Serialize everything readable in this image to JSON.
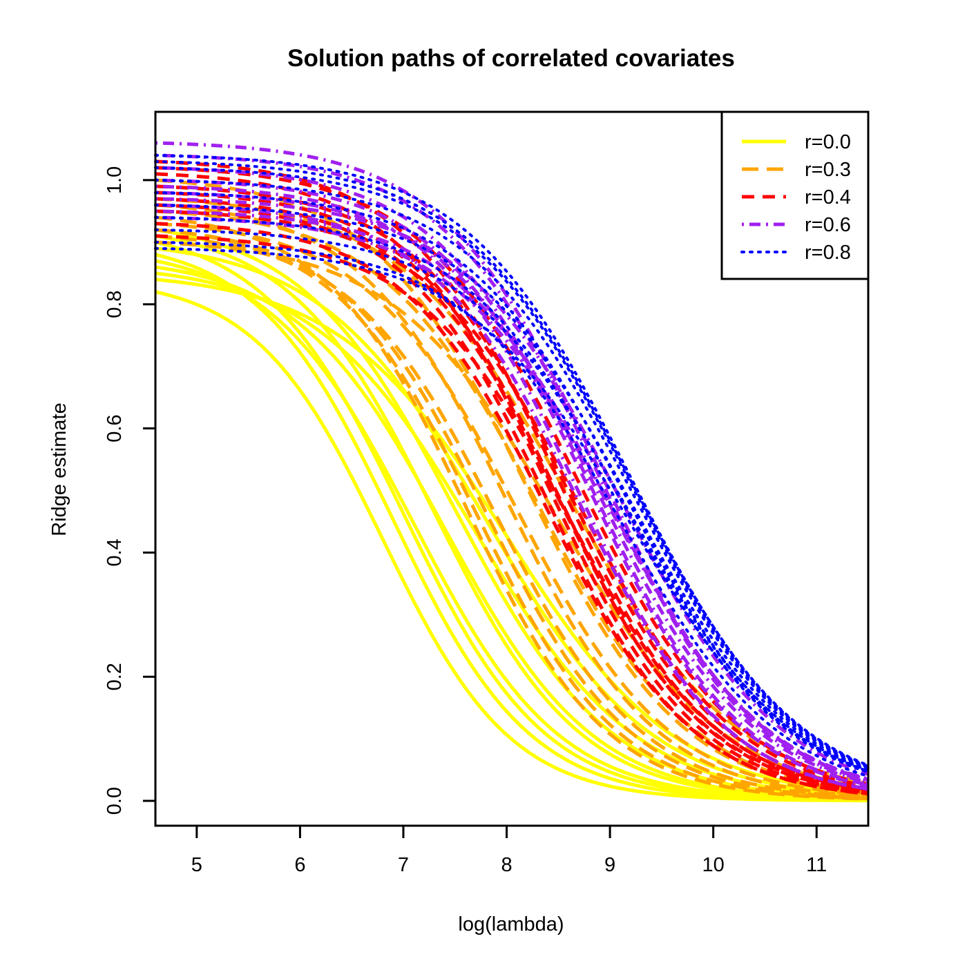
{
  "chart_data": {
    "type": "line",
    "title": "Solution paths of correlated covariates",
    "xlabel": "log(lambda)",
    "ylabel": "Ridge estimate",
    "xlim": [
      4.6,
      11.5
    ],
    "ylim": [
      -0.04,
      1.11
    ],
    "x_ticks": [
      5,
      6,
      7,
      8,
      9,
      10,
      11
    ],
    "y_ticks": [
      0.0,
      0.2,
      0.4,
      0.6,
      0.8,
      1.0
    ],
    "x_tick_labels": [
      "5",
      "6",
      "7",
      "8",
      "9",
      "10",
      "11"
    ],
    "y_tick_labels": [
      "0.0",
      "0.2",
      "0.4",
      "0.6",
      "0.8",
      "1.0"
    ],
    "grid": false,
    "legend_position": "top-right",
    "x_range": [
      4.6,
      11.5
    ],
    "series": [
      {
        "name": "r=0.0",
        "color": "#FFFF00",
        "dash": "solid",
        "paths": [
          {
            "start": 0.9,
            "mid": 7.0,
            "scale": 0.68
          },
          {
            "start": 0.88,
            "mid": 6.9,
            "scale": 0.66
          },
          {
            "start": 0.87,
            "mid": 7.1,
            "scale": 0.7
          },
          {
            "start": 0.86,
            "mid": 7.4,
            "scale": 0.72
          },
          {
            "start": 0.92,
            "mid": 7.5,
            "scale": 0.75
          },
          {
            "start": 0.85,
            "mid": 7.7,
            "scale": 0.78
          },
          {
            "start": 0.89,
            "mid": 7.8,
            "scale": 0.8
          },
          {
            "start": 0.82,
            "mid": 6.8,
            "scale": 0.62
          },
          {
            "start": 0.91,
            "mid": 7.3,
            "scale": 0.7
          },
          {
            "start": 0.84,
            "mid": 8.0,
            "scale": 0.82
          }
        ]
      },
      {
        "name": "r=0.3",
        "color": "#FFA500",
        "dash": "dashed",
        "paths": [
          {
            "start": 0.94,
            "mid": 7.6,
            "scale": 0.68
          },
          {
            "start": 0.92,
            "mid": 7.8,
            "scale": 0.7
          },
          {
            "start": 0.96,
            "mid": 8.0,
            "scale": 0.72
          },
          {
            "start": 0.93,
            "mid": 8.1,
            "scale": 0.74
          },
          {
            "start": 0.95,
            "mid": 8.3,
            "scale": 0.76
          },
          {
            "start": 0.91,
            "mid": 7.9,
            "scale": 0.71
          },
          {
            "start": 1.0,
            "mid": 8.2,
            "scale": 0.75
          },
          {
            "start": 0.9,
            "mid": 8.5,
            "scale": 0.8
          },
          {
            "start": 0.97,
            "mid": 8.6,
            "scale": 0.82
          },
          {
            "start": 0.92,
            "mid": 7.7,
            "scale": 0.69
          }
        ]
      },
      {
        "name": "r=0.4",
        "color": "#FF0000",
        "dash": "dashed2",
        "paths": [
          {
            "start": 1.03,
            "mid": 8.5,
            "scale": 0.74
          },
          {
            "start": 1.01,
            "mid": 8.4,
            "scale": 0.72
          },
          {
            "start": 0.99,
            "mid": 8.6,
            "scale": 0.75
          },
          {
            "start": 0.97,
            "mid": 8.5,
            "scale": 0.73
          },
          {
            "start": 0.95,
            "mid": 8.7,
            "scale": 0.76
          },
          {
            "start": 0.93,
            "mid": 8.4,
            "scale": 0.71
          },
          {
            "start": 0.91,
            "mid": 8.6,
            "scale": 0.74
          },
          {
            "start": 0.98,
            "mid": 8.5,
            "scale": 0.72
          },
          {
            "start": 1.02,
            "mid": 8.7,
            "scale": 0.77
          },
          {
            "start": 0.96,
            "mid": 8.4,
            "scale": 0.7
          }
        ]
      },
      {
        "name": "r=0.6",
        "color": "#A020F0",
        "dash": "dotdash",
        "paths": [
          {
            "start": 1.06,
            "mid": 8.9,
            "scale": 0.76
          },
          {
            "start": 1.02,
            "mid": 8.8,
            "scale": 0.74
          },
          {
            "start": 0.98,
            "mid": 8.9,
            "scale": 0.75
          },
          {
            "start": 0.96,
            "mid": 8.7,
            "scale": 0.72
          },
          {
            "start": 0.94,
            "mid": 9.0,
            "scale": 0.77
          },
          {
            "start": 1.0,
            "mid": 8.8,
            "scale": 0.73
          },
          {
            "start": 0.97,
            "mid": 9.1,
            "scale": 0.78
          },
          {
            "start": 1.04,
            "mid": 8.9,
            "scale": 0.75
          },
          {
            "start": 0.99,
            "mid": 8.7,
            "scale": 0.71
          },
          {
            "start": 0.95,
            "mid": 9.0,
            "scale": 0.76
          }
        ]
      },
      {
        "name": "r=0.8",
        "color": "#0000FF",
        "dash": "dotted",
        "paths": [
          {
            "start": 1.04,
            "mid": 9.2,
            "scale": 0.8
          },
          {
            "start": 1.02,
            "mid": 9.2,
            "scale": 0.8
          },
          {
            "start": 1.0,
            "mid": 9.2,
            "scale": 0.8
          },
          {
            "start": 0.98,
            "mid": 9.15,
            "scale": 0.79
          },
          {
            "start": 0.96,
            "mid": 9.2,
            "scale": 0.8
          },
          {
            "start": 0.94,
            "mid": 9.15,
            "scale": 0.79
          },
          {
            "start": 0.92,
            "mid": 9.2,
            "scale": 0.8
          },
          {
            "start": 0.9,
            "mid": 9.1,
            "scale": 0.78
          },
          {
            "start": 0.89,
            "mid": 9.2,
            "scale": 0.8
          },
          {
            "start": 1.03,
            "mid": 9.2,
            "scale": 0.81
          }
        ]
      }
    ]
  }
}
